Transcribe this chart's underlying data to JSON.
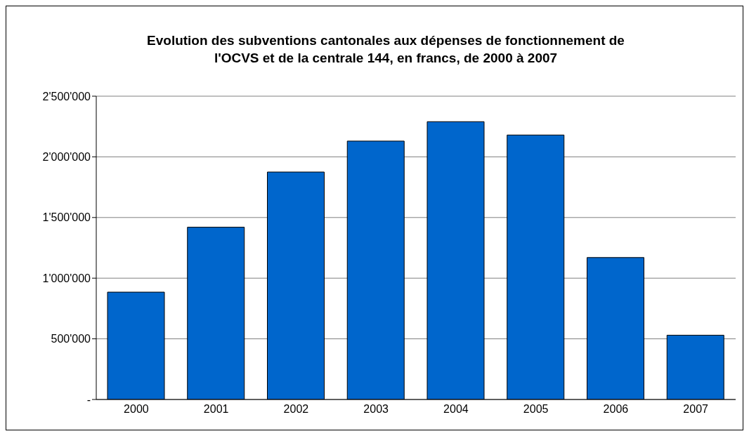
{
  "chart_data": {
    "type": "bar",
    "title": "Evolution des subventions cantonales aux dépenses de fonctionnement de l'OCVS et de la centrale 144, en francs, de 2000 à 2007",
    "categories": [
      "2000",
      "2001",
      "2002",
      "2003",
      "2004",
      "2005",
      "2006",
      "2007"
    ],
    "values": [
      885000,
      1420000,
      1875000,
      2130000,
      2290000,
      2180000,
      1170000,
      530000
    ],
    "color": "#0066cc",
    "ylim": [
      0,
      2500000
    ],
    "yticks": [
      {
        "value": 0,
        "label": "-"
      },
      {
        "value": 500000,
        "label": "500'000"
      },
      {
        "value": 1000000,
        "label": "1'000'000"
      },
      {
        "value": 1500000,
        "label": "1'500'000"
      },
      {
        "value": 2000000,
        "label": "2'000'000"
      },
      {
        "value": 2500000,
        "label": "2'500'000"
      }
    ],
    "grid": "y"
  }
}
